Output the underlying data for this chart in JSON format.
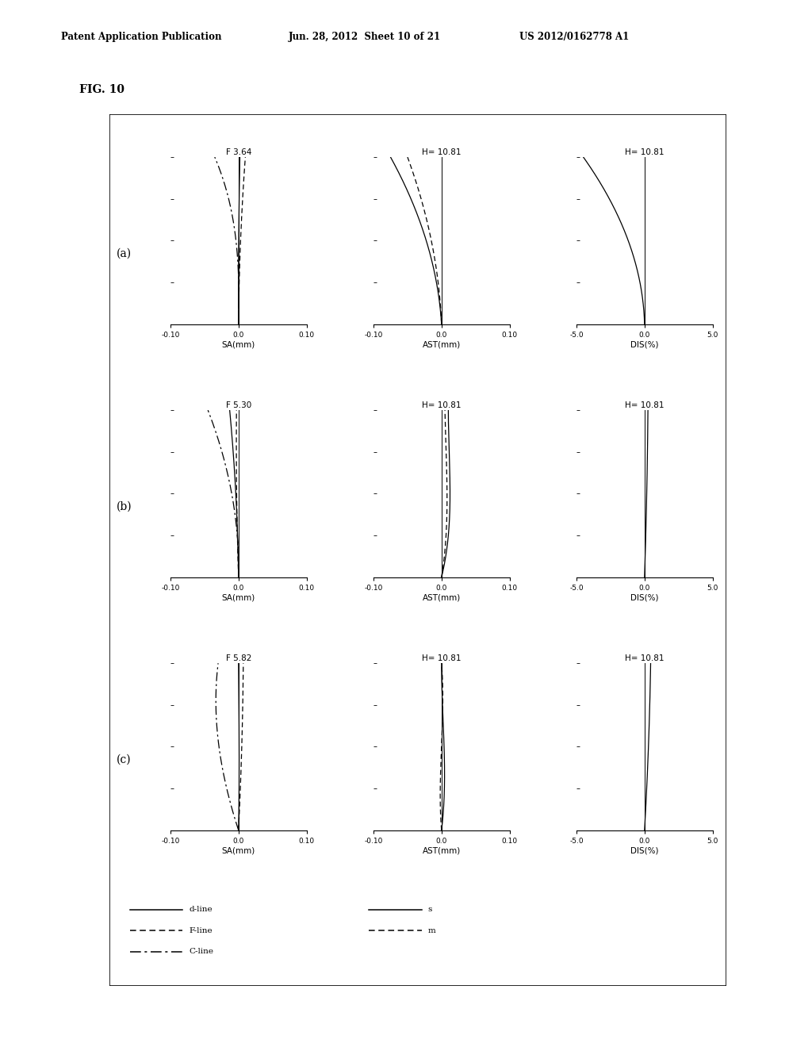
{
  "fig_label": "FIG. 10",
  "header_left": "Patent Application Publication",
  "header_mid": "Jun. 28, 2012  Sheet 10 of 21",
  "header_right": "US 2012/0162778 A1",
  "rows": [
    {
      "label": "(a)",
      "sa_title": "F 3.64",
      "ast_title": "H= 10.81",
      "dis_title": "H= 10.81"
    },
    {
      "label": "(b)",
      "sa_title": "F 5.30",
      "ast_title": "H= 10.81",
      "dis_title": "H= 10.81"
    },
    {
      "label": "(c)",
      "sa_title": "F 5.82",
      "ast_title": "H= 10.81",
      "dis_title": "H= 10.81"
    }
  ],
  "sa_xlim": [
    -0.1,
    0.1
  ],
  "ast_xlim": [
    -0.1,
    0.1
  ],
  "dis_xlim": [
    -5.0,
    5.0
  ],
  "sa_xticks": [
    -0.1,
    0.0,
    0.1
  ],
  "ast_xticks": [
    -0.1,
    0.0,
    0.1
  ],
  "dis_xticks": [
    -5.0,
    0.0,
    5.0
  ],
  "sa_xticklabels": [
    "-0.10",
    "0.0",
    "0.10"
  ],
  "ast_xticklabels": [
    "-0.10",
    "0.0",
    "0.10"
  ],
  "dis_xticklabels": [
    "-5.0",
    "0.0",
    "5.0"
  ],
  "background": "#ffffff"
}
